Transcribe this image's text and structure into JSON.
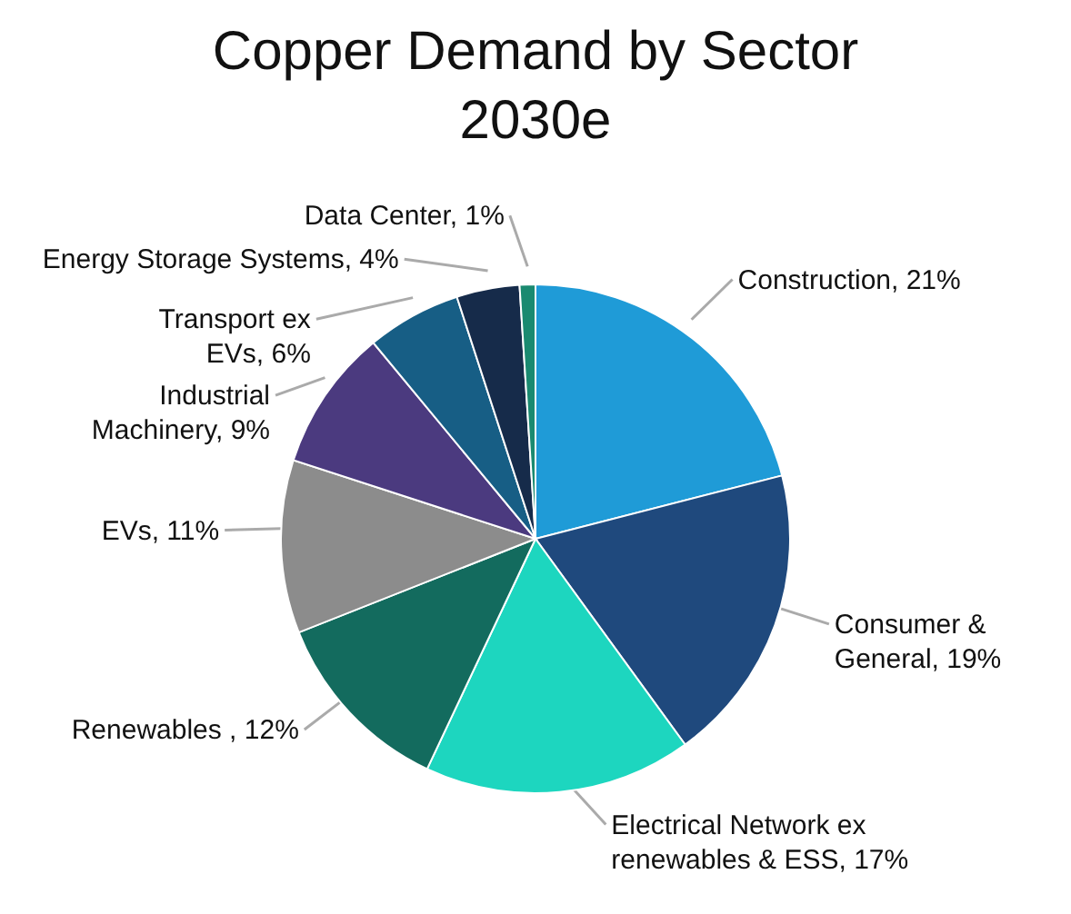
{
  "chart_data": {
    "type": "pie",
    "title": "Copper Demand by Sector 2030e",
    "categories": [
      "Construction",
      "Consumer & General",
      "Electrical Network ex renewables & ESS",
      "Renewables ",
      "EVs",
      "Industrial Machinery",
      "Transport ex EVs",
      "Energy Storage Systems",
      "Data Center"
    ],
    "values": [
      21,
      19,
      17,
      12,
      11,
      9,
      6,
      4,
      1
    ],
    "value_labels": [
      "21%",
      "19%",
      "17%",
      "12%",
      "11%",
      "9%",
      "6%",
      "4%",
      "1%"
    ],
    "colors": [
      "#1f9bd7",
      "#1f497d",
      "#1dd6bf",
      "#136b5e",
      "#8c8c8c",
      "#4b3a7f",
      "#175e85",
      "#162b4a",
      "#1a8a70"
    ]
  }
}
